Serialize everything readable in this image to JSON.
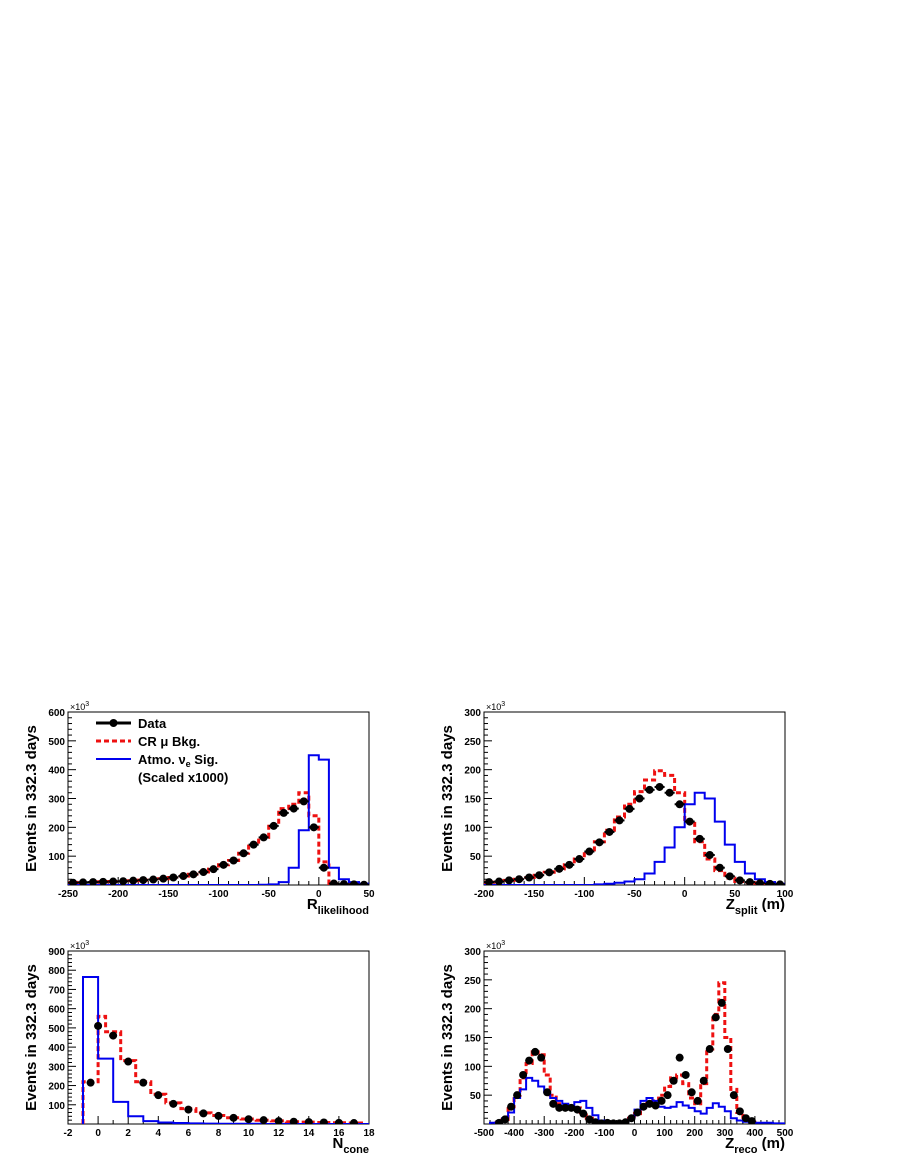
{
  "chart_data": [
    {
      "type": "line",
      "ylabel": "Events in 332.3 days",
      "xlabel_main": "R",
      "xlabel_sub": "likelihood",
      "xlabel_unit": "",
      "y_multiplier": "×10",
      "y_multiplier_exp": "3",
      "xlim": [
        -250,
        50
      ],
      "ylim": [
        0,
        600
      ],
      "xticks": [
        -250,
        -200,
        -150,
        -100,
        -50,
        0,
        50
      ],
      "yticks": [
        100,
        200,
        300,
        400,
        500,
        600
      ],
      "legend": {
        "data": "Data",
        "bkg": "CR μ Bkg.",
        "sig_prefix": "Atmo. ν",
        "sig_sub": "e",
        "sig_suffix": " Sig.",
        "scaled": "(Scaled x1000)"
      },
      "series": [
        {
          "name": "Data",
          "kind": "points",
          "x": [
            -245,
            -235,
            -225,
            -215,
            -205,
            -195,
            -185,
            -175,
            -165,
            -155,
            -145,
            -135,
            -125,
            -115,
            -105,
            -95,
            -85,
            -75,
            -65,
            -55,
            -45,
            -35,
            -25,
            -15,
            -5,
            5,
            15,
            25,
            35,
            45
          ],
          "values": [
            8,
            9,
            10,
            11,
            12,
            13,
            15,
            17,
            19,
            22,
            26,
            31,
            37,
            45,
            55,
            70,
            85,
            110,
            140,
            165,
            205,
            250,
            265,
            290,
            200,
            60,
            5,
            3,
            2,
            1
          ]
        },
        {
          "name": "CR μ Bkg.",
          "kind": "step",
          "edges": [
            -250,
            -240,
            -230,
            -220,
            -210,
            -200,
            -190,
            -180,
            -170,
            -160,
            -150,
            -140,
            -130,
            -120,
            -110,
            -100,
            -90,
            -80,
            -70,
            -60,
            -50,
            -40,
            -30,
            -20,
            -10,
            0,
            10,
            20,
            30,
            40,
            50
          ],
          "values": [
            8,
            9,
            10,
            11,
            12,
            13,
            15,
            17,
            19,
            22,
            26,
            31,
            37,
            45,
            55,
            70,
            85,
            110,
            140,
            165,
            210,
            265,
            280,
            320,
            240,
            80,
            5,
            3,
            2,
            1
          ]
        },
        {
          "name": "Atmo. νe Sig.",
          "kind": "step",
          "edges": [
            -250,
            -240,
            -230,
            -220,
            -210,
            -200,
            -190,
            -180,
            -170,
            -160,
            -150,
            -140,
            -130,
            -120,
            -110,
            -100,
            -90,
            -80,
            -70,
            -60,
            -50,
            -40,
            -30,
            -20,
            -10,
            0,
            10,
            20,
            30,
            40,
            50
          ],
          "values": [
            0,
            0,
            0,
            0,
            0,
            0,
            0,
            0,
            0,
            0,
            0,
            0,
            0,
            0,
            0,
            0,
            0,
            0,
            0,
            1,
            2,
            10,
            60,
            190,
            450,
            435,
            60,
            20,
            10,
            5
          ]
        }
      ]
    },
    {
      "type": "line",
      "ylabel": "Events in 332.3 days",
      "xlabel_main": "Z",
      "xlabel_sub": "split",
      "xlabel_unit": " (m)",
      "y_multiplier": "×10",
      "y_multiplier_exp": "3",
      "xlim": [
        -200,
        100
      ],
      "ylim": [
        0,
        300
      ],
      "xticks": [
        -200,
        -150,
        -100,
        -50,
        0,
        50,
        100
      ],
      "yticks": [
        50,
        100,
        150,
        200,
        250,
        300
      ],
      "series": [
        {
          "name": "Data",
          "kind": "points",
          "x": [
            -195,
            -185,
            -175,
            -165,
            -155,
            -145,
            -135,
            -125,
            -115,
            -105,
            -95,
            -85,
            -75,
            -65,
            -55,
            -45,
            -35,
            -25,
            -15,
            -5,
            5,
            15,
            25,
            35,
            45,
            55,
            65,
            75,
            85,
            95
          ],
          "values": [
            5,
            6,
            8,
            10,
            13,
            17,
            22,
            28,
            35,
            45,
            58,
            74,
            92,
            112,
            132,
            150,
            165,
            170,
            160,
            140,
            110,
            80,
            52,
            30,
            15,
            8,
            5,
            3,
            2,
            1
          ]
        },
        {
          "name": "CR μ Bkg.",
          "kind": "step",
          "edges": [
            -200,
            -190,
            -180,
            -170,
            -160,
            -150,
            -140,
            -130,
            -120,
            -110,
            -100,
            -90,
            -80,
            -70,
            -60,
            -50,
            -40,
            -30,
            -20,
            -10,
            0,
            10,
            20,
            30,
            40,
            50,
            60,
            70,
            80,
            90,
            100
          ],
          "values": [
            5,
            6,
            8,
            10,
            13,
            17,
            22,
            28,
            35,
            45,
            58,
            75,
            95,
            118,
            140,
            162,
            182,
            198,
            190,
            160,
            110,
            75,
            45,
            25,
            12,
            6,
            4,
            3,
            2,
            1
          ]
        },
        {
          "name": "Atmo. νe Sig.",
          "kind": "step",
          "edges": [
            -200,
            -190,
            -180,
            -170,
            -160,
            -150,
            -140,
            -130,
            -120,
            -110,
            -100,
            -90,
            -80,
            -70,
            -60,
            -50,
            -40,
            -30,
            -20,
            -10,
            0,
            10,
            20,
            30,
            40,
            50,
            60,
            70,
            80,
            90,
            100
          ],
          "values": [
            0,
            0,
            0,
            0,
            0,
            0,
            0,
            0,
            0,
            0,
            0,
            1,
            2,
            4,
            6,
            10,
            20,
            40,
            65,
            100,
            140,
            160,
            150,
            110,
            70,
            40,
            20,
            10,
            5,
            2
          ]
        }
      ]
    },
    {
      "type": "line",
      "ylabel": "Events in 332.3 days",
      "xlabel_main": "N",
      "xlabel_sub": "cone",
      "xlabel_unit": "",
      "y_multiplier": "×10",
      "y_multiplier_exp": "3",
      "xlim": [
        -2,
        18
      ],
      "ylim": [
        0,
        900
      ],
      "xticks": [
        -2,
        0,
        2,
        4,
        6,
        8,
        10,
        12,
        14,
        16,
        18
      ],
      "yticks": [
        100,
        200,
        300,
        400,
        500,
        600,
        700,
        800,
        900
      ],
      "series": [
        {
          "name": "Data",
          "kind": "points",
          "x": [
            -0.5,
            0,
            1,
            2,
            3,
            4,
            5,
            6,
            7,
            8,
            9,
            10,
            11,
            12,
            13,
            14,
            15,
            16,
            17
          ],
          "values": [
            215,
            510,
            460,
            325,
            215,
            150,
            105,
            75,
            55,
            42,
            32,
            25,
            20,
            15,
            12,
            10,
            8,
            6,
            5
          ]
        },
        {
          "name": "CR μ Bkg.",
          "kind": "step",
          "edges": [
            -1,
            0,
            0.5,
            1.5,
            2.5,
            3.5,
            4.5,
            5.5,
            6.5,
            7.5,
            8.5,
            9.5,
            10.5,
            11.5,
            12.5,
            13.5,
            14.5,
            15.5,
            16.5,
            17.5
          ],
          "values": [
            220,
            560,
            480,
            330,
            220,
            155,
            110,
            80,
            58,
            44,
            33,
            26,
            20,
            16,
            12,
            10,
            8,
            6,
            5
          ]
        },
        {
          "name": "Atmo. νe Sig.",
          "kind": "step",
          "edges": [
            -1,
            0,
            1,
            2,
            3,
            4,
            5,
            6,
            7,
            8,
            9,
            10,
            11,
            12,
            13,
            14,
            15,
            16,
            17,
            18
          ],
          "values": [
            765,
            340,
            115,
            40,
            15,
            8,
            5,
            3,
            2,
            1,
            1,
            1,
            0,
            0,
            0,
            0,
            0,
            0,
            0
          ]
        }
      ]
    },
    {
      "type": "line",
      "ylabel": "Events in 332.3 days",
      "xlabel_main": "Z",
      "xlabel_sub": "reco",
      "xlabel_unit": " (m)",
      "y_multiplier": "×10",
      "y_multiplier_exp": "3",
      "xlim": [
        -500,
        500
      ],
      "ylim": [
        0,
        300
      ],
      "xticks": [
        -500,
        -400,
        -300,
        -200,
        -100,
        0,
        100,
        200,
        300,
        400,
        500
      ],
      "yticks": [
        50,
        100,
        150,
        200,
        250,
        300
      ],
      "series": [
        {
          "name": "Data",
          "kind": "points",
          "x": [
            -450,
            -430,
            -410,
            -390,
            -370,
            -350,
            -330,
            -310,
            -290,
            -270,
            -250,
            -230,
            -210,
            -190,
            -170,
            -150,
            -130,
            -110,
            -90,
            -70,
            -50,
            -30,
            -10,
            10,
            30,
            50,
            70,
            90,
            110,
            130,
            150,
            170,
            190,
            210,
            230,
            250,
            270,
            290,
            310,
            330,
            350,
            370,
            390
          ],
          "values": [
            2,
            8,
            30,
            50,
            85,
            110,
            125,
            115,
            55,
            35,
            28,
            28,
            28,
            25,
            18,
            8,
            3,
            1,
            2,
            1,
            1,
            3,
            10,
            20,
            30,
            35,
            32,
            40,
            50,
            75,
            115,
            85,
            55,
            40,
            75,
            130,
            185,
            210,
            130,
            50,
            22,
            10,
            5
          ]
        },
        {
          "name": "CR μ Bkg.",
          "kind": "step",
          "edges": [
            -460,
            -440,
            -420,
            -400,
            -380,
            -360,
            -340,
            -320,
            -300,
            -280,
            -260,
            -240,
            -220,
            -200,
            -180,
            -160,
            -140,
            -120,
            -100,
            -80,
            -60,
            -40,
            -20,
            0,
            20,
            40,
            60,
            80,
            100,
            120,
            140,
            160,
            180,
            200,
            220,
            240,
            260,
            280,
            300,
            320,
            340,
            360,
            380,
            400
          ],
          "values": [
            2,
            8,
            30,
            50,
            80,
            105,
            125,
            120,
            85,
            50,
            35,
            30,
            30,
            28,
            20,
            10,
            4,
            2,
            2,
            1,
            1,
            3,
            10,
            18,
            28,
            35,
            40,
            50,
            65,
            80,
            85,
            70,
            45,
            35,
            70,
            130,
            190,
            245,
            150,
            60,
            20,
            8,
            3
          ]
        },
        {
          "name": "Atmo. νe Sig.",
          "kind": "step",
          "edges": [
            -480,
            -460,
            -440,
            -420,
            -400,
            -380,
            -360,
            -340,
            -320,
            -300,
            -280,
            -260,
            -240,
            -220,
            -200,
            -180,
            -160,
            -140,
            -120,
            -100,
            -80,
            -60,
            -40,
            -20,
            0,
            20,
            40,
            60,
            80,
            100,
            120,
            140,
            160,
            180,
            200,
            220,
            240,
            260,
            280,
            300,
            320,
            340,
            360,
            380,
            400,
            420,
            440,
            460,
            480,
            500
          ],
          "values": [
            2,
            3,
            10,
            20,
            45,
            60,
            80,
            75,
            65,
            55,
            45,
            40,
            35,
            30,
            38,
            40,
            28,
            15,
            6,
            3,
            2,
            2,
            4,
            10,
            25,
            40,
            45,
            40,
            30,
            28,
            30,
            38,
            32,
            28,
            22,
            18,
            28,
            36,
            30,
            22,
            10,
            6,
            4,
            3,
            2,
            2,
            2,
            1,
            1,
            1
          ]
        }
      ]
    }
  ]
}
